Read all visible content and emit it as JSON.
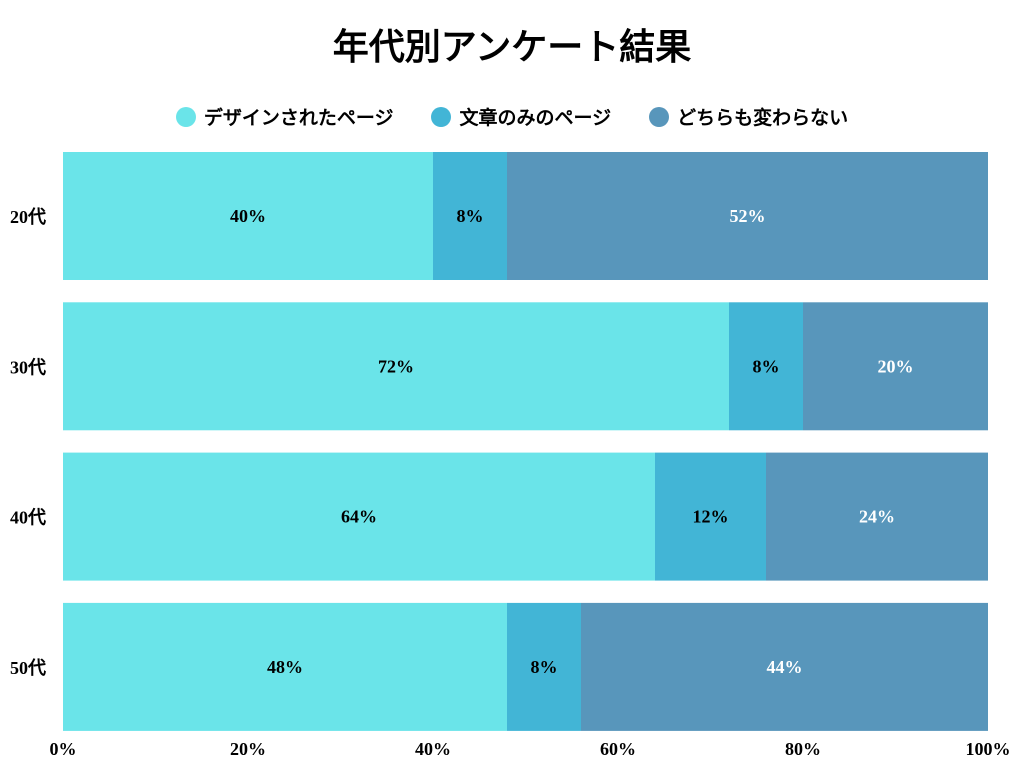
{
  "chart_data": {
    "type": "bar",
    "orientation": "horizontal",
    "stacked": "percent",
    "title": "年代別アンケート結果",
    "categories": [
      "20代",
      "30代",
      "40代",
      "50代"
    ],
    "series": [
      {
        "name": "デザインされたページ",
        "values": [
          40,
          72,
          64,
          48
        ],
        "color": "#6ae4e9",
        "label_color": "#000000"
      },
      {
        "name": "文章のみのページ",
        "values": [
          8,
          8,
          12,
          8
        ],
        "color": "#42b5d6",
        "label_color": "#000000"
      },
      {
        "name": "どちらも変わらない",
        "values": [
          52,
          20,
          24,
          44
        ],
        "color": "#5896bb",
        "label_color": "#ffffff"
      }
    ],
    "x_ticks": [
      "0%",
      "20%",
      "40%",
      "60%",
      "80%",
      "100%"
    ],
    "xlim": [
      0,
      100
    ],
    "legend_position": "top",
    "grid": false
  }
}
